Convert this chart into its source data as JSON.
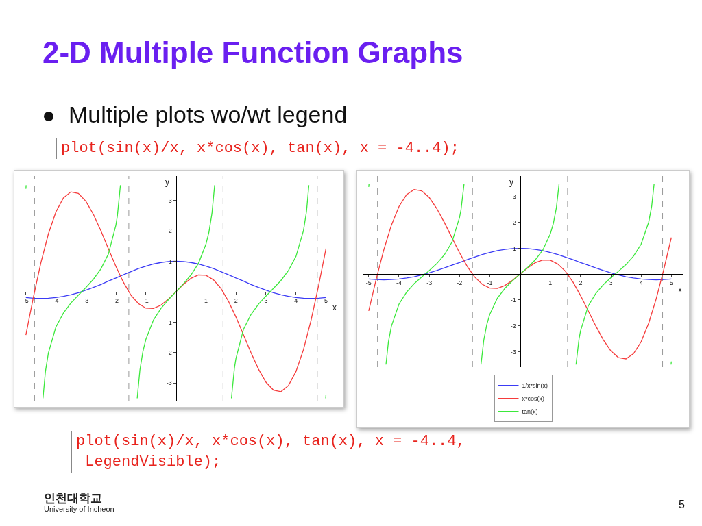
{
  "chart_data": [
    {
      "type": "line",
      "title": "2-D Multiple Function Graphs",
      "subtitle": "Multiple plots wo/wt legend",
      "annotations": [
        "plot(sin(x)/x, x*cos(x), tan(x), x = -4..4);"
      ],
      "xlabel": "x",
      "ylabel": "y",
      "xlim": [
        -5.2,
        5.4
      ],
      "ylim": [
        -3.6,
        3.8
      ],
      "xticks": [
        -5,
        -4,
        -3,
        -2,
        -1,
        1,
        2,
        3,
        4,
        5
      ],
      "yticks": [
        -3,
        -2,
        -1,
        1,
        2,
        3
      ],
      "x": [
        -5,
        -4.75,
        -4.5,
        -4.25,
        -4,
        -3.75,
        -3.5,
        -3.25,
        -3,
        -2.75,
        -2.5,
        -2.25,
        -2,
        -1.75,
        -1.5,
        -1.25,
        -1,
        -0.75,
        -0.5,
        -0.25,
        0,
        0.25,
        0.5,
        0.75,
        1,
        1.25,
        1.5,
        1.75,
        2,
        2.25,
        2.5,
        2.75,
        3,
        3.25,
        3.5,
        3.75,
        4,
        4.25,
        4.5,
        4.75,
        5
      ],
      "ref_lines": [
        {
          "axis": "x",
          "value": -4.71,
          "color": "#999999",
          "line_style": "dashed"
        },
        {
          "axis": "x",
          "value": -1.57,
          "color": "#999999",
          "line_style": "dashed"
        },
        {
          "axis": "x",
          "value": 1.57,
          "color": "#999999",
          "line_style": "dashed"
        },
        {
          "axis": "x",
          "value": 4.71,
          "color": "#999999",
          "line_style": "dashed"
        }
      ],
      "series": [
        {
          "color": "#3b3bf5",
          "values": [
            -0.19,
            -0.21,
            -0.22,
            -0.21,
            -0.19,
            -0.15,
            -0.1,
            -0.03,
            0.05,
            0.14,
            0.24,
            0.35,
            0.45,
            0.56,
            0.66,
            0.76,
            0.84,
            0.91,
            0.96,
            0.99,
            1,
            0.99,
            0.96,
            0.91,
            0.84,
            0.76,
            0.66,
            0.56,
            0.45,
            0.35,
            0.24,
            0.14,
            0.05,
            -0.03,
            -0.1,
            -0.15,
            -0.19,
            -0.21,
            -0.22,
            -0.21,
            -0.19
          ]
        },
        {
          "color": "#f53b3b",
          "values": [
            -1.42,
            -0.18,
            0.95,
            1.9,
            2.62,
            3.08,
            3.28,
            3.23,
            2.97,
            2.54,
            2.0,
            1.41,
            0.83,
            0.31,
            -0.11,
            -0.39,
            -0.54,
            -0.55,
            -0.44,
            -0.24,
            0,
            0.24,
            0.44,
            0.55,
            0.54,
            0.39,
            0.11,
            -0.31,
            -0.83,
            -1.41,
            -2.0,
            -2.54,
            -2.97,
            -3.23,
            -3.28,
            -3.08,
            -2.62,
            -1.9,
            -0.95,
            0.18,
            1.42
          ]
        },
        {
          "color": "#3be83b",
          "x": [
            -5,
            -4.99,
            -4.71,
            -4.43,
            -4.35,
            -4.25,
            -4,
            -3.75,
            -3.5,
            -3.25,
            -3.14,
            -3,
            -2.75,
            -2.5,
            -2.25,
            -2,
            -1.95,
            -1.85,
            -1.57,
            -1.29,
            -1.2,
            -1.1,
            -1,
            -0.75,
            -0.5,
            -0.25,
            0,
            0.25,
            0.5,
            0.75,
            1,
            1.1,
            1.2,
            1.29,
            1.57,
            1.85,
            1.95,
            2,
            2.25,
            2.5,
            2.75,
            3,
            3.14,
            3.25,
            3.5,
            3.75,
            4,
            4.25,
            4.35,
            4.43,
            4.71,
            4.99,
            5
          ],
          "values": [
            3.38,
            3.5,
            null,
            -3.5,
            -2.63,
            -2.01,
            -1.16,
            -0.7,
            -0.37,
            -0.11,
            0,
            0.14,
            0.41,
            0.75,
            1.24,
            2.19,
            2.5,
            3.5,
            null,
            -3.5,
            -2.57,
            -1.96,
            -1.56,
            -0.93,
            -0.55,
            -0.26,
            0,
            0.26,
            0.55,
            0.93,
            1.56,
            1.96,
            2.57,
            3.5,
            null,
            -3.5,
            -2.5,
            -2.19,
            -1.24,
            -0.75,
            -0.41,
            -0.14,
            0,
            0.11,
            0.37,
            0.7,
            1.16,
            2.01,
            2.63,
            3.5,
            null,
            -3.5,
            -3.38
          ]
        }
      ]
    },
    {
      "type": "line",
      "annotations": [
        "plot(sin(x)/x, x*cos(x), tan(x), x = -4..4,\n LegendVisible);",
        "인천대학교",
        "University of Incheon",
        "5"
      ],
      "xlabel": "x",
      "ylabel": "y",
      "xlim": [
        -5.2,
        5.4
      ],
      "ylim": [
        -3.6,
        3.8
      ],
      "xticks": [
        -5,
        -4,
        -3,
        -2,
        -1,
        1,
        2,
        3,
        4,
        5
      ],
      "yticks": [
        -3,
        -2,
        -1,
        1,
        2,
        3
      ],
      "legend": "bottom",
      "x": [
        -5,
        -4.75,
        -4.5,
        -4.25,
        -4,
        -3.75,
        -3.5,
        -3.25,
        -3,
        -2.75,
        -2.5,
        -2.25,
        -2,
        -1.75,
        -1.5,
        -1.25,
        -1,
        -0.75,
        -0.5,
        -0.25,
        0,
        0.25,
        0.5,
        0.75,
        1,
        1.25,
        1.5,
        1.75,
        2,
        2.25,
        2.5,
        2.75,
        3,
        3.25,
        3.5,
        3.75,
        4,
        4.25,
        4.5,
        4.75,
        5
      ],
      "ref_lines": [
        {
          "axis": "x",
          "value": -4.71,
          "color": "#999999",
          "line_style": "dashed"
        },
        {
          "axis": "x",
          "value": -1.57,
          "color": "#999999",
          "line_style": "dashed"
        },
        {
          "axis": "x",
          "value": 1.57,
          "color": "#999999",
          "line_style": "dashed"
        },
        {
          "axis": "x",
          "value": 4.71,
          "color": "#999999",
          "line_style": "dashed"
        }
      ],
      "series": [
        {
          "name": "1/x*sin(x)",
          "color": "#3b3bf5",
          "values": [
            -0.19,
            -0.21,
            -0.22,
            -0.21,
            -0.19,
            -0.15,
            -0.1,
            -0.03,
            0.05,
            0.14,
            0.24,
            0.35,
            0.45,
            0.56,
            0.66,
            0.76,
            0.84,
            0.91,
            0.96,
            0.99,
            1,
            0.99,
            0.96,
            0.91,
            0.84,
            0.76,
            0.66,
            0.56,
            0.45,
            0.35,
            0.24,
            0.14,
            0.05,
            -0.03,
            -0.1,
            -0.15,
            -0.19,
            -0.21,
            -0.22,
            -0.21,
            -0.19
          ]
        },
        {
          "name": "x*cos(x)",
          "color": "#f53b3b",
          "values": [
            -1.42,
            -0.18,
            0.95,
            1.9,
            2.62,
            3.08,
            3.28,
            3.23,
            2.97,
            2.54,
            2.0,
            1.41,
            0.83,
            0.31,
            -0.11,
            -0.39,
            -0.54,
            -0.55,
            -0.44,
            -0.24,
            0,
            0.24,
            0.44,
            0.55,
            0.54,
            0.39,
            0.11,
            -0.31,
            -0.83,
            -1.41,
            -2.0,
            -2.54,
            -2.97,
            -3.23,
            -3.28,
            -3.08,
            -2.62,
            -1.9,
            -0.95,
            0.18,
            1.42
          ]
        },
        {
          "name": "tan(x)",
          "color": "#3be83b",
          "x": [
            -5,
            -4.99,
            -4.71,
            -4.43,
            -4.35,
            -4.25,
            -4,
            -3.75,
            -3.5,
            -3.25,
            -3.14,
            -3,
            -2.75,
            -2.5,
            -2.25,
            -2,
            -1.95,
            -1.85,
            -1.57,
            -1.29,
            -1.2,
            -1.1,
            -1,
            -0.75,
            -0.5,
            -0.25,
            0,
            0.25,
            0.5,
            0.75,
            1,
            1.1,
            1.2,
            1.29,
            1.57,
            1.85,
            1.95,
            2,
            2.25,
            2.5,
            2.75,
            3,
            3.14,
            3.25,
            3.5,
            3.75,
            4,
            4.25,
            4.35,
            4.43,
            4.71,
            4.99,
            5
          ],
          "values": [
            3.38,
            3.5,
            null,
            -3.5,
            -2.63,
            -2.01,
            -1.16,
            -0.7,
            -0.37,
            -0.11,
            0,
            0.14,
            0.41,
            0.75,
            1.24,
            2.19,
            2.5,
            3.5,
            null,
            -3.5,
            -2.57,
            -1.96,
            -1.56,
            -0.93,
            -0.55,
            -0.26,
            0,
            0.26,
            0.55,
            0.93,
            1.56,
            1.96,
            2.57,
            3.5,
            null,
            -3.5,
            -2.5,
            -2.19,
            -1.24,
            -0.75,
            -0.41,
            -0.14,
            0,
            0.11,
            0.37,
            0.7,
            1.16,
            2.01,
            2.63,
            3.5,
            null,
            -3.5,
            -3.38
          ]
        }
      ]
    }
  ]
}
